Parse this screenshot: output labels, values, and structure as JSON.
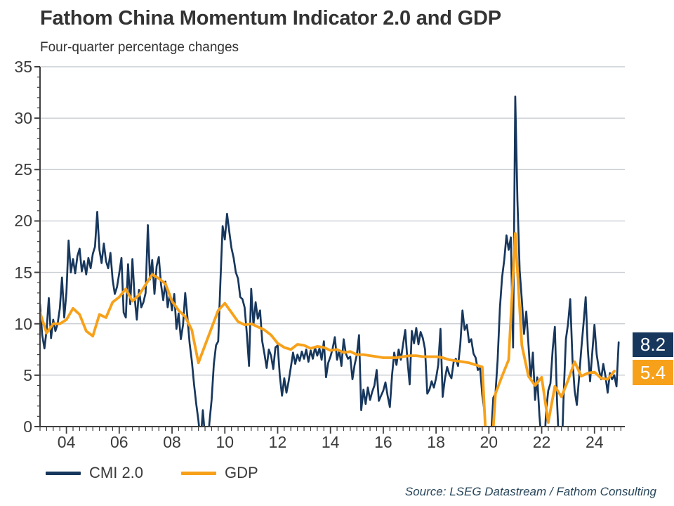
{
  "header": {
    "title": "Fathom China Momentum Indicator 2.0 and GDP",
    "subtitle": "Four-quarter percentage changes"
  },
  "footer": {
    "source": "Source: LSEG Datastream / Fathom Consulting"
  },
  "colors": {
    "cmi_navy": "#17375d",
    "gdp_orange": "#f7a11a",
    "gridline": "#c9cdd2",
    "axis": "#3f3f3f",
    "text": "#3b3b3b"
  },
  "end_labels": {
    "cmi": "8.2",
    "gdp": "5.4"
  },
  "legend": {
    "cmi_label": "CMI 2.0",
    "gdp_label": "GDP"
  },
  "chart_data": {
    "type": "line",
    "title": "Fathom China Momentum Indicator 2.0 and GDP",
    "subtitle": "Four-quarter percentage changes",
    "xlabel": "",
    "ylabel": "",
    "ylim": [
      0,
      35
    ],
    "xlim": [
      2003,
      2025.15
    ],
    "grid": "horizontal",
    "legend_position": "bottom-left",
    "y_ticks": [
      0,
      5,
      10,
      15,
      20,
      25,
      30,
      35
    ],
    "x_ticks": [
      {
        "label": "04",
        "year": 2004
      },
      {
        "label": "06",
        "year": 2006
      },
      {
        "label": "08",
        "year": 2008
      },
      {
        "label": "10",
        "year": 2010
      },
      {
        "label": "12",
        "year": 2012
      },
      {
        "label": "14",
        "year": 2014
      },
      {
        "label": "16",
        "year": 2016
      },
      {
        "label": "18",
        "year": 2018
      },
      {
        "label": "20",
        "year": 2020
      },
      {
        "label": "22",
        "year": 2022
      },
      {
        "label": "24",
        "year": 2024
      }
    ],
    "series": [
      {
        "name": "CMI 2.0",
        "color": "#17375d",
        "stroke_width": 2.7,
        "x_start": 2003.0,
        "x_step": 0.08333,
        "values": [
          11.9,
          8.9,
          7.6,
          9.4,
          12.5,
          8.6,
          10.4,
          9.3,
          10.0,
          11.5,
          14.5,
          10.6,
          13.0,
          18.1,
          15.0,
          16.3,
          14.9,
          16.6,
          17.3,
          15.1,
          16.1,
          14.8,
          16.4,
          15.4,
          16.8,
          17.5,
          20.9,
          17.2,
          15.9,
          17.8,
          16.1,
          15.4,
          16.9,
          14.3,
          12.9,
          13.6,
          14.9,
          16.4,
          11.1,
          10.6,
          15.8,
          11.9,
          16.3,
          12.5,
          10.4,
          13.3,
          11.6,
          12.1,
          13.0,
          19.6,
          14.3,
          16.2,
          12.9,
          15.6,
          16.5,
          13.8,
          12.3,
          14.1,
          11.6,
          12.9,
          11.3,
          12.9,
          9.5,
          11.0,
          8.5,
          9.9,
          13.0,
          10.6,
          8.1,
          6.4,
          4.1,
          2.2,
          0.6,
          -1.5,
          1.6,
          -1.0,
          -2.5,
          0.4,
          2.6,
          6.1,
          7.9,
          8.3,
          14.2,
          19.5,
          18.2,
          20.7,
          19.0,
          17.4,
          16.4,
          15.0,
          14.4,
          12.6,
          12.4,
          11.6,
          9.0,
          5.9,
          13.4,
          9.9,
          12.1,
          10.5,
          11.3,
          8.3,
          7.1,
          5.7,
          7.5,
          6.9,
          5.6,
          7.7,
          7.9,
          4.9,
          3.0,
          4.7,
          3.3,
          4.4,
          5.8,
          7.2,
          6.1,
          7.0,
          6.4,
          7.3,
          6.6,
          7.5,
          6.3,
          7.4,
          6.6,
          7.7,
          6.9,
          7.6,
          6.5,
          8.3,
          4.8,
          6.2,
          6.8,
          7.6,
          8.7,
          6.5,
          7.4,
          5.9,
          8.5,
          7.1,
          6.6,
          6.8,
          4.6,
          6.0,
          7.0,
          8.9,
          1.6,
          3.6,
          2.2,
          3.8,
          2.6,
          3.4,
          4.0,
          5.5,
          2.5,
          3.0,
          3.5,
          4.3,
          3.0,
          1.9,
          5.0,
          7.2,
          6.0,
          7.5,
          6.5,
          8.0,
          9.4,
          6.5,
          4.1,
          9.3,
          8.1,
          9.6,
          8.0,
          9.2,
          8.6,
          7.5,
          3.2,
          3.6,
          4.4,
          3.8,
          4.7,
          6.0,
          9.5,
          2.9,
          4.6,
          5.8,
          5.1,
          4.7,
          6.3,
          6.6,
          5.9,
          8.0,
          11.3,
          9.4,
          9.9,
          8.2,
          8.5,
          7.1,
          6.7,
          5.5,
          5.7,
          3.1,
          1.5,
          -2.5,
          -4.0,
          -1.0,
          2.8,
          3.2,
          6.5,
          11.5,
          14.5,
          16.2,
          18.6,
          17.2,
          18.4,
          7.7,
          32.1,
          22.0,
          15.2,
          12.3,
          9.0,
          11.2,
          8.0,
          4.6,
          7.2,
          2.6,
          4.8,
          1.0,
          -1.5,
          -3.0,
          1.5,
          3.5,
          4.2,
          7.5,
          9.7,
          2.5,
          -2.5,
          -3.5,
          3.0,
          8.5,
          10.0,
          12.4,
          6.5,
          3.5,
          2.1,
          4.8,
          7.5,
          10.0,
          12.6,
          7.5,
          4.4,
          7.2,
          9.9,
          7.0,
          5.6,
          4.6,
          6.1,
          4.9,
          3.3,
          5.2,
          4.6,
          5.0,
          3.9,
          8.2
        ]
      },
      {
        "name": "GDP",
        "color": "#f7a11a",
        "stroke_width": 3.8,
        "x_start": 2003.0,
        "x_step": 0.25,
        "values": [
          11.1,
          9.1,
          10.0,
          10.0,
          10.4,
          11.5,
          10.9,
          9.3,
          8.8,
          10.9,
          10.6,
          12.1,
          12.6,
          13.4,
          12.2,
          12.8,
          13.8,
          14.8,
          14.4,
          13.9,
          12.2,
          11.3,
          10.7,
          9.4,
          6.2,
          7.9,
          9.6,
          11.3,
          12.0,
          11.1,
          10.2,
          9.9,
          10.0,
          9.7,
          9.4,
          8.9,
          8.1,
          7.7,
          7.5,
          8.0,
          7.9,
          7.6,
          7.8,
          7.7,
          7.4,
          7.5,
          7.2,
          7.3,
          7.0,
          7.0,
          6.9,
          6.8,
          6.7,
          6.7,
          6.7,
          6.8,
          6.9,
          6.9,
          6.8,
          6.8,
          6.8,
          6.7,
          6.5,
          6.4,
          6.3,
          6.2,
          6.0,
          5.8,
          -6.8,
          3.2,
          4.9,
          6.5,
          18.8,
          7.9,
          4.9,
          4.0,
          4.8,
          0.4,
          3.9,
          2.9,
          4.5,
          6.3,
          4.9,
          5.2,
          5.3,
          4.7,
          4.6,
          5.4
        ]
      }
    ]
  }
}
